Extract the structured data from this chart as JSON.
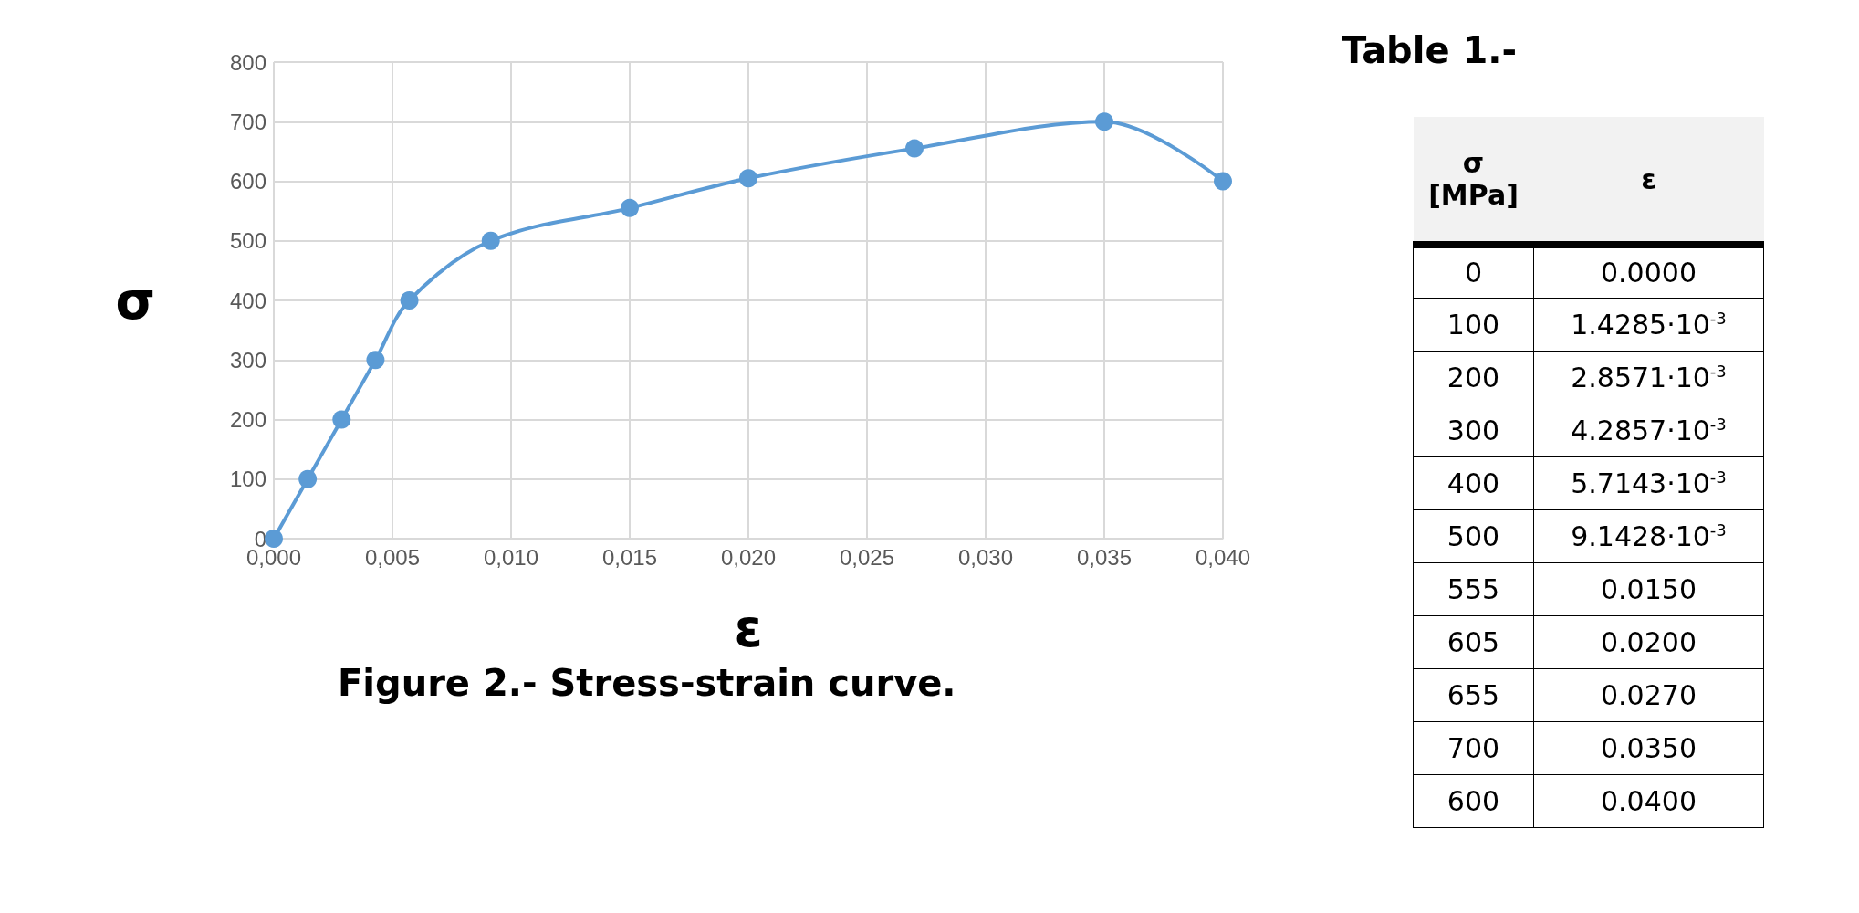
{
  "chart_data": {
    "type": "line",
    "title": "Figure 2.- Stress-strain curve.",
    "xlabel": "ε",
    "ylabel": "σ",
    "x": [
      0,
      0.0014285,
      0.0028571,
      0.0042857,
      0.0057143,
      0.0091428,
      0.015,
      0.02,
      0.027,
      0.035,
      0.04
    ],
    "series": [
      {
        "color": "#5b9bd5",
        "values": [
          0,
          100,
          200,
          300,
          400,
          500,
          555,
          605,
          655,
          700,
          600
        ]
      }
    ],
    "xlim": [
      0,
      0.04
    ],
    "xticks": [
      {
        "value": 0,
        "label": "0,000"
      },
      {
        "value": 0.005,
        "label": "0,005"
      },
      {
        "value": 0.01,
        "label": "0,010"
      },
      {
        "value": 0.015,
        "label": "0,015"
      },
      {
        "value": 0.02,
        "label": "0,020"
      },
      {
        "value": 0.025,
        "label": "0,025"
      },
      {
        "value": 0.03,
        "label": "0,030"
      },
      {
        "value": 0.035,
        "label": "0,035"
      },
      {
        "value": 0.04,
        "label": "0,040"
      }
    ],
    "ylim": [
      0,
      800
    ],
    "yticks": [
      0,
      100,
      200,
      300,
      400,
      500,
      600,
      700,
      800
    ],
    "grid": true,
    "marker": "circle",
    "line_style": "solid",
    "annotations": [
      "Table 1.-",
      "σ [MPa]",
      "ε",
      "0",
      "0.0000",
      "100",
      "1.4285·10$^{-3}$",
      "200",
      "2.8571·10$^{-3}$",
      "300",
      "4.2857·10$^{-3}$",
      "400",
      "5.7143·10$^{-3}$",
      "500",
      "9.1428·10$^{-3}$",
      "555",
      "0.0150",
      "605",
      "0.0200",
      "655",
      "0.0270",
      "700",
      "0.0350",
      "600",
      "0.0400"
    ]
  }
}
